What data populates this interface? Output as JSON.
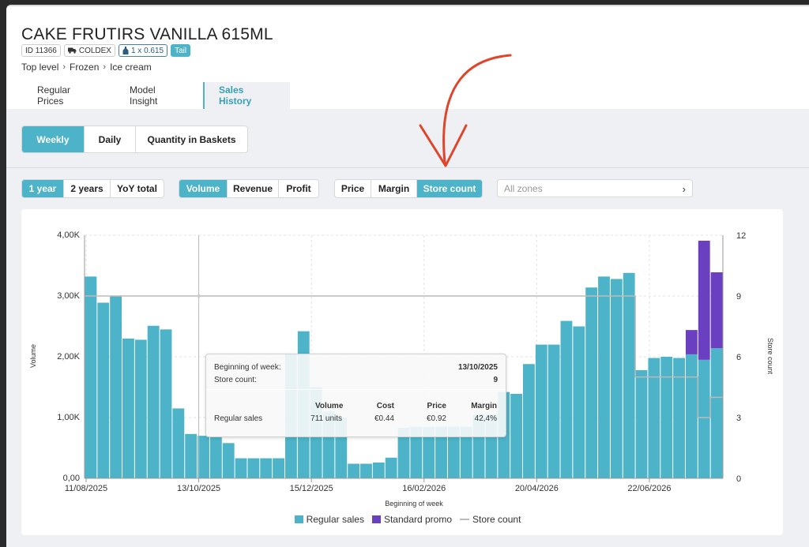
{
  "product": {
    "title": "CAKE FRUTIRS VANILLA 615ML",
    "id_badge": "ID 11366",
    "supplier": "COLDEX",
    "pack": "1 x 0.615",
    "tag": "Tail"
  },
  "breadcrumb": [
    "Top level",
    "Frozen",
    "Ice cream"
  ],
  "tabs": [
    "Regular Prices",
    "Model Insight",
    "Sales History"
  ],
  "granularity": [
    "Weekly",
    "Daily",
    "Quantity in Baskets"
  ],
  "period": [
    "1 year",
    "2 years",
    "YoY total"
  ],
  "metric": [
    "Volume",
    "Revenue",
    "Profit"
  ],
  "overlay": [
    "Price",
    "Margin",
    "Store count"
  ],
  "zones_placeholder": "All zones",
  "colors": {
    "regular": "#4cb3c8",
    "promo": "#6a3fc0",
    "store": "#bbbbbb",
    "accent": "#4cb3c8",
    "annotation": "#e0442b"
  },
  "chart_data": {
    "type": "bar",
    "xlabel": "Beginning of week",
    "ylabel": "Volume",
    "y2label": "Store count",
    "ylim": [
      0,
      4000
    ],
    "y2lim": [
      0,
      12
    ],
    "yticks": [
      "0,00",
      "1,00K",
      "2,00K",
      "3,00K",
      "4,00K"
    ],
    "y2ticks": [
      "0",
      "3",
      "6",
      "9",
      "12"
    ],
    "xtick_labels": [
      "11/08/2025",
      "13/10/2025",
      "15/12/2025",
      "16/02/2026",
      "20/04/2026",
      "22/06/2026"
    ],
    "series": [
      {
        "name": "Regular sales",
        "values": [
          3320,
          2890,
          3000,
          2300,
          2280,
          2510,
          2450,
          1150,
          730,
          700,
          680,
          580,
          330,
          330,
          330,
          330,
          2040,
          2420,
          1500,
          1100,
          1000,
          240,
          240,
          260,
          340,
          830,
          850,
          850,
          850,
          850,
          850,
          1050,
          1050,
          1420,
          1390,
          1880,
          2200,
          2200,
          2590,
          2500,
          3140,
          3320,
          3280,
          3380,
          1780,
          1980,
          2000,
          1980,
          2040,
          1950,
          2140
        ]
      },
      {
        "name": "Standard promo",
        "values": [
          0,
          0,
          0,
          0,
          0,
          0,
          0,
          0,
          0,
          0,
          0,
          0,
          0,
          0,
          0,
          0,
          0,
          0,
          0,
          0,
          0,
          0,
          0,
          0,
          0,
          0,
          0,
          0,
          0,
          0,
          0,
          0,
          0,
          0,
          0,
          0,
          0,
          0,
          0,
          0,
          0,
          0,
          0,
          0,
          0,
          0,
          0,
          0,
          400,
          1960,
          1250
        ]
      },
      {
        "name": "Store count",
        "values": [
          9,
          9,
          9,
          9,
          9,
          9,
          9,
          9,
          9,
          9,
          9,
          9,
          9,
          9,
          9,
          9,
          9,
          9,
          9,
          9,
          9,
          9,
          9,
          9,
          9,
          9,
          9,
          9,
          9,
          9,
          9,
          9,
          9,
          9,
          9,
          9,
          9,
          9,
          9,
          9,
          9,
          9,
          9,
          9,
          5,
          5,
          5,
          5,
          5,
          3,
          4
        ]
      }
    ],
    "legend": [
      "Regular sales",
      "Standard promo",
      "Store count"
    ],
    "legend_position": "bottom"
  },
  "tooltip": {
    "week_label": "Beginning of week:",
    "week_value": "13/10/2025",
    "stores_label": "Store count:",
    "stores_value": "9",
    "headers": [
      "Volume",
      "Cost",
      "Price",
      "Margin"
    ],
    "row_label": "Regular sales",
    "row_values": [
      "711 units",
      "€0.44",
      "€0.92",
      "42,4%"
    ]
  }
}
